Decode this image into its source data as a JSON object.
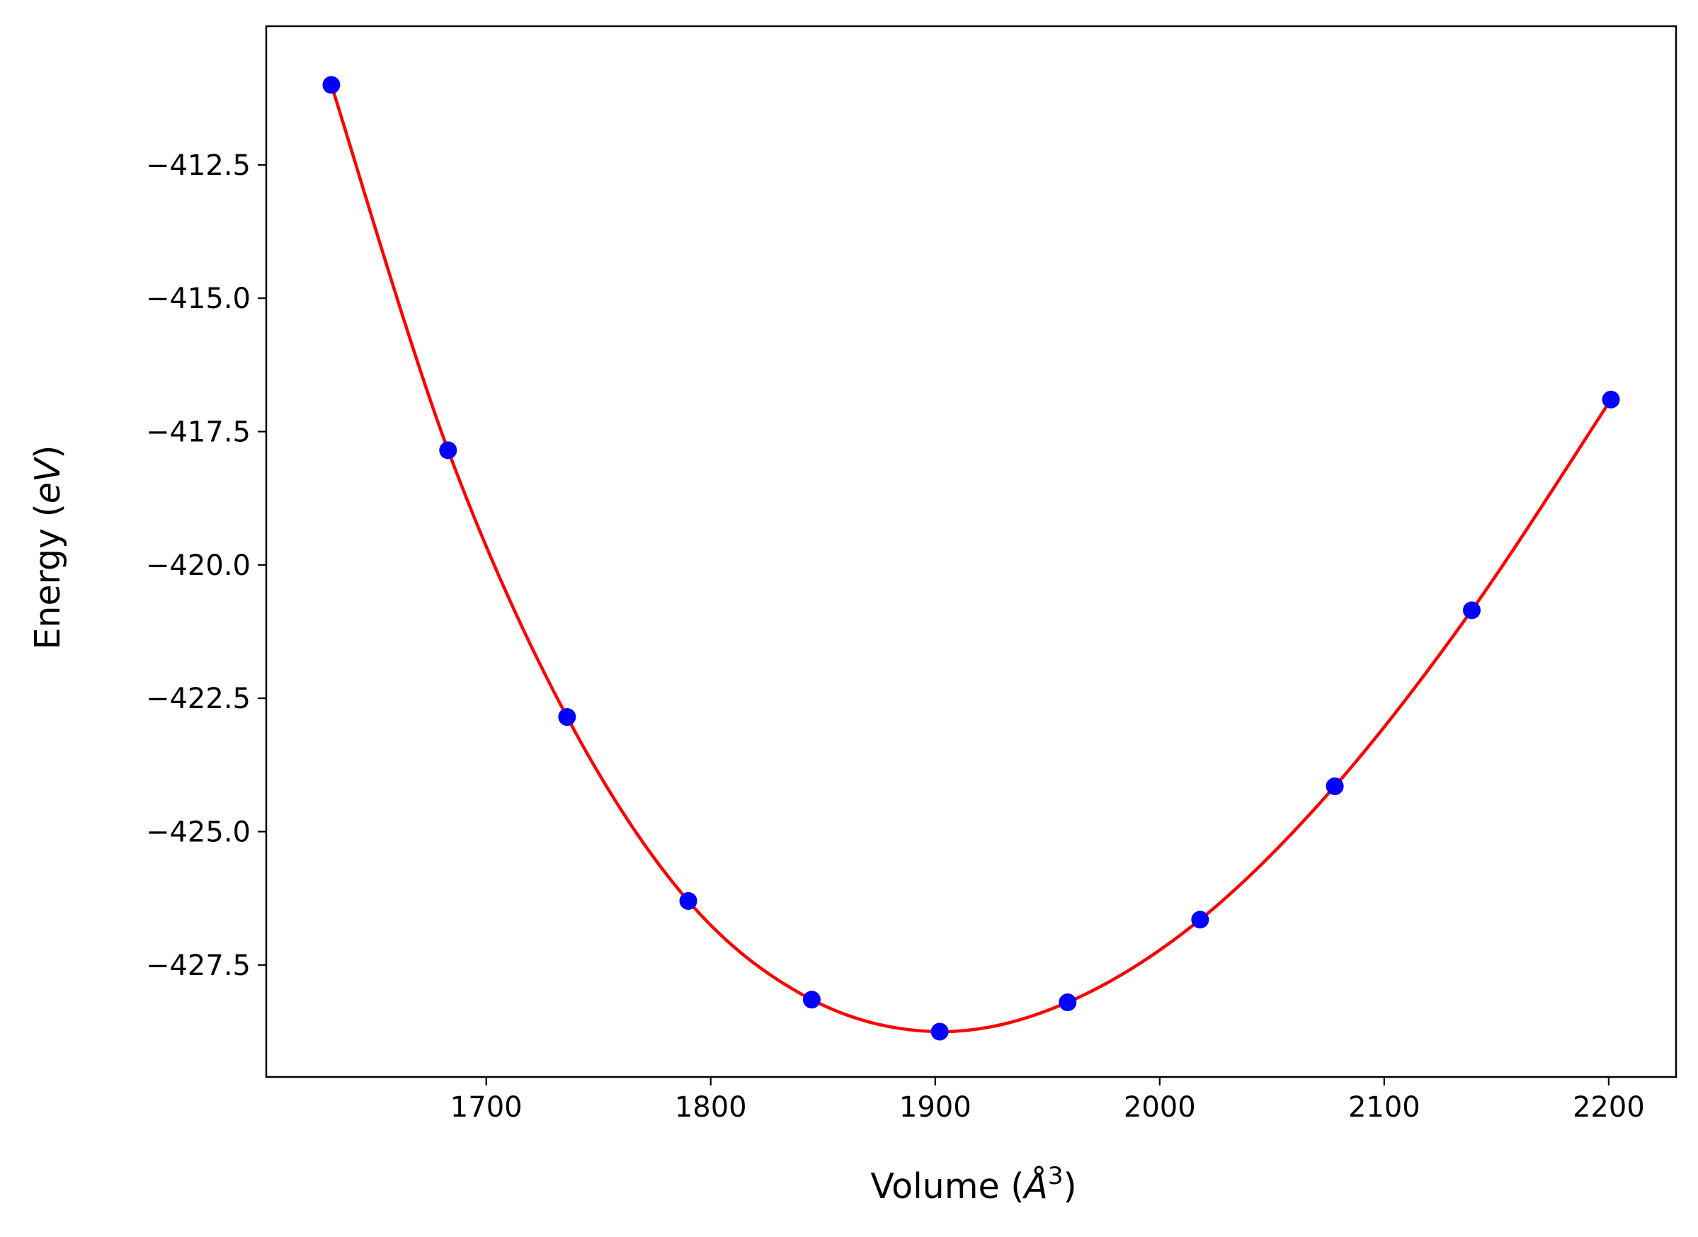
{
  "chart_data": {
    "type": "scatter",
    "title": "",
    "xlabel": "Volume",
    "xlabel_unit_prefix": "(",
    "xlabel_unit": "Å",
    "xlabel_unit_power": "3",
    "xlabel_unit_suffix": ")",
    "ylabel": "Energy",
    "ylabel_unit_prefix": "(",
    "ylabel_unit": "eV",
    "ylabel_unit_suffix": ")",
    "xlim": [
      1602,
      2230
    ],
    "ylim": [
      -429.6,
      -409.9
    ],
    "xticks": [
      1700,
      1800,
      1900,
      2000,
      2100,
      2200
    ],
    "xtick_labels": [
      "1700",
      "1800",
      "1900",
      "2000",
      "2100",
      "2200"
    ],
    "yticks": [
      -412.5,
      -415.0,
      -417.5,
      -420.0,
      -422.5,
      -425.0,
      -427.5
    ],
    "ytick_labels": [
      "−412.5",
      "−415.0",
      "−417.5",
      "−420.0",
      "−422.5",
      "−425.0",
      "−427.5"
    ],
    "grid": false,
    "series": [
      {
        "kind": "points",
        "color": "#0000ff",
        "x": [
          1631,
          1683,
          1736,
          1790,
          1845,
          1902,
          1959,
          2018,
          2078,
          2139,
          2201
        ],
        "y": [
          -411.0,
          -417.85,
          -422.85,
          -426.3,
          -428.15,
          -428.75,
          -428.2,
          -426.65,
          -424.15,
          -420.85,
          -416.9
        ]
      },
      {
        "kind": "fit-curve",
        "color": "#ff0000",
        "x": [
          1631,
          1683,
          1736,
          1790,
          1845,
          1902,
          1959,
          2018,
          2078,
          2139,
          2201
        ],
        "y": [
          -411.0,
          -417.85,
          -422.85,
          -426.3,
          -428.15,
          -428.75,
          -428.2,
          -426.65,
          -424.15,
          -420.85,
          -416.9
        ]
      }
    ]
  }
}
